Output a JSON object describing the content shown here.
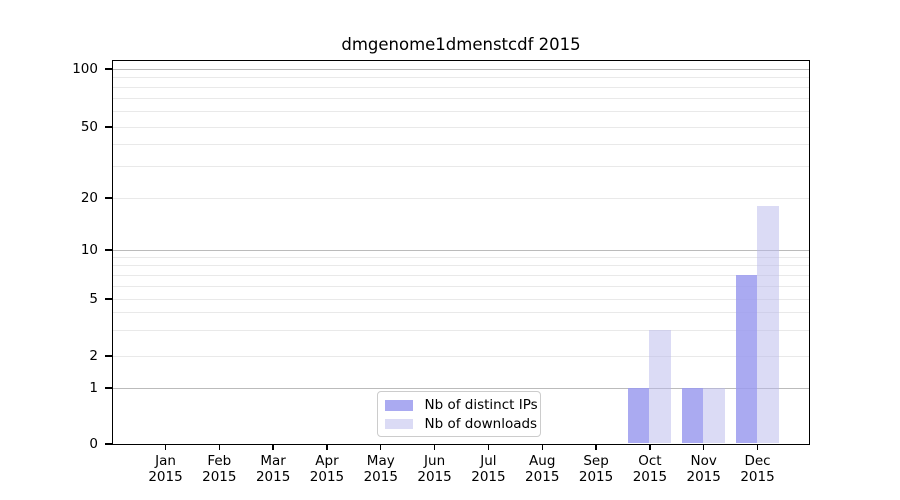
{
  "chart_data": {
    "type": "bar",
    "title": "dmgenome1dmenstcdf 2015",
    "categories": [
      "Jan 2015",
      "Feb 2015",
      "Mar 2015",
      "Apr 2015",
      "May 2015",
      "Jun 2015",
      "Jul 2015",
      "Aug 2015",
      "Sep 2015",
      "Oct 2015",
      "Nov 2015",
      "Dec 2015"
    ],
    "x_tick_lines": {
      "months": [
        "Jan",
        "Feb",
        "Mar",
        "Apr",
        "May",
        "Jun",
        "Jul",
        "Aug",
        "Sep",
        "Oct",
        "Nov",
        "Dec"
      ],
      "year": "2015"
    },
    "series": [
      {
        "name": "Nb of distinct IPs",
        "color": "#aaaaf0",
        "fill": "rgba(155,155,238,0.85)",
        "values": [
          0,
          0,
          0,
          0,
          0,
          0,
          0,
          0,
          0,
          1,
          1,
          7
        ]
      },
      {
        "name": "Nb of downloads",
        "color": "#dbdbf5",
        "fill": "rgba(183,183,235,0.5)",
        "values": [
          0,
          0,
          0,
          0,
          0,
          0,
          0,
          0,
          0,
          3,
          1,
          18
        ]
      }
    ],
    "yscale": "symlog",
    "yticks": [
      0,
      1,
      2,
      5,
      10,
      20,
      50,
      100
    ],
    "ylim": [
      0,
      110
    ],
    "grid": true,
    "legend_position": "lower center",
    "colors": {
      "axis": "#000000",
      "grid_major": "#bbbbbb",
      "grid_minor": "#e9e9e9",
      "legend_border": "#cccccc",
      "text": "#000000"
    }
  }
}
